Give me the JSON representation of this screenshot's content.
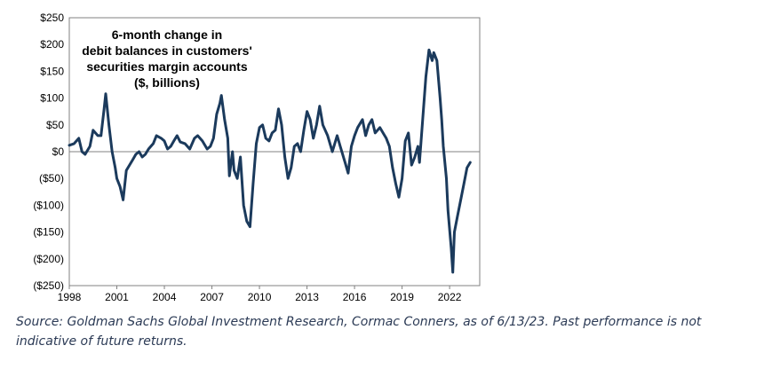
{
  "chart_data": {
    "type": "line",
    "title_lines": [
      "6-month change in",
      "debit balances in customers'",
      "securities margin accounts",
      "($, billions)"
    ],
    "xlabel": "",
    "ylabel": "",
    "xlim": [
      1998,
      2023.9
    ],
    "ylim": [
      -250,
      250
    ],
    "x_ticks": [
      1998,
      2001,
      2004,
      2007,
      2010,
      2013,
      2016,
      2019,
      2022
    ],
    "y_ticks": [
      {
        "value": 250,
        "label": "$250"
      },
      {
        "value": 200,
        "label": "$200"
      },
      {
        "value": 150,
        "label": "$150"
      },
      {
        "value": 100,
        "label": "$100"
      },
      {
        "value": 50,
        "label": "$50"
      },
      {
        "value": 0,
        "label": "$0"
      },
      {
        "value": -50,
        "label": "($50)"
      },
      {
        "value": -100,
        "label": "($100)"
      },
      {
        "value": -150,
        "label": "($150)"
      },
      {
        "value": -200,
        "label": "($200)"
      },
      {
        "value": -250,
        "label": "($250)"
      }
    ],
    "line_color": "#1b3a5c",
    "series": [
      {
        "name": "6-month change in debit balances",
        "points": [
          [
            1998.0,
            12
          ],
          [
            1998.3,
            15
          ],
          [
            1998.6,
            25
          ],
          [
            1998.8,
            0
          ],
          [
            1999.0,
            -5
          ],
          [
            1999.3,
            10
          ],
          [
            1999.5,
            40
          ],
          [
            1999.8,
            30
          ],
          [
            2000.0,
            30
          ],
          [
            2000.2,
            80
          ],
          [
            2000.3,
            108
          ],
          [
            2000.5,
            50
          ],
          [
            2000.7,
            0
          ],
          [
            2000.9,
            -30
          ],
          [
            2001.0,
            -50
          ],
          [
            2001.2,
            -65
          ],
          [
            2001.4,
            -90
          ],
          [
            2001.6,
            -35
          ],
          [
            2001.8,
            -25
          ],
          [
            2002.0,
            -15
          ],
          [
            2002.2,
            -5
          ],
          [
            2002.4,
            0
          ],
          [
            2002.6,
            -10
          ],
          [
            2002.8,
            -5
          ],
          [
            2003.0,
            5
          ],
          [
            2003.3,
            15
          ],
          [
            2003.5,
            30
          ],
          [
            2003.8,
            25
          ],
          [
            2004.0,
            20
          ],
          [
            2004.2,
            5
          ],
          [
            2004.4,
            10
          ],
          [
            2004.6,
            20
          ],
          [
            2004.8,
            30
          ],
          [
            2005.0,
            18
          ],
          [
            2005.3,
            15
          ],
          [
            2005.6,
            5
          ],
          [
            2005.9,
            25
          ],
          [
            2006.1,
            30
          ],
          [
            2006.4,
            20
          ],
          [
            2006.7,
            5
          ],
          [
            2006.9,
            10
          ],
          [
            2007.1,
            25
          ],
          [
            2007.3,
            70
          ],
          [
            2007.5,
            90
          ],
          [
            2007.6,
            105
          ],
          [
            2007.8,
            60
          ],
          [
            2008.0,
            25
          ],
          [
            2008.1,
            -45
          ],
          [
            2008.3,
            0
          ],
          [
            2008.4,
            -35
          ],
          [
            2008.6,
            -50
          ],
          [
            2008.8,
            -10
          ],
          [
            2009.0,
            -100
          ],
          [
            2009.2,
            -130
          ],
          [
            2009.4,
            -140
          ],
          [
            2009.6,
            -60
          ],
          [
            2009.8,
            15
          ],
          [
            2010.0,
            45
          ],
          [
            2010.2,
            50
          ],
          [
            2010.4,
            25
          ],
          [
            2010.6,
            20
          ],
          [
            2010.8,
            35
          ],
          [
            2011.0,
            40
          ],
          [
            2011.2,
            80
          ],
          [
            2011.4,
            50
          ],
          [
            2011.6,
            -10
          ],
          [
            2011.8,
            -50
          ],
          [
            2012.0,
            -30
          ],
          [
            2012.2,
            10
          ],
          [
            2012.4,
            15
          ],
          [
            2012.6,
            0
          ],
          [
            2012.8,
            40
          ],
          [
            2013.0,
            75
          ],
          [
            2013.2,
            60
          ],
          [
            2013.4,
            25
          ],
          [
            2013.6,
            50
          ],
          [
            2013.8,
            85
          ],
          [
            2014.0,
            50
          ],
          [
            2014.3,
            30
          ],
          [
            2014.6,
            0
          ],
          [
            2014.9,
            30
          ],
          [
            2015.1,
            10
          ],
          [
            2015.4,
            -20
          ],
          [
            2015.6,
            -40
          ],
          [
            2015.8,
            10
          ],
          [
            2016.0,
            30
          ],
          [
            2016.2,
            45
          ],
          [
            2016.5,
            60
          ],
          [
            2016.7,
            30
          ],
          [
            2016.9,
            50
          ],
          [
            2017.1,
            60
          ],
          [
            2017.3,
            35
          ],
          [
            2017.6,
            45
          ],
          [
            2017.8,
            35
          ],
          [
            2018.0,
            25
          ],
          [
            2018.2,
            10
          ],
          [
            2018.4,
            -30
          ],
          [
            2018.6,
            -60
          ],
          [
            2018.8,
            -85
          ],
          [
            2019.0,
            -50
          ],
          [
            2019.2,
            20
          ],
          [
            2019.4,
            35
          ],
          [
            2019.6,
            -25
          ],
          [
            2019.8,
            -10
          ],
          [
            2020.0,
            10
          ],
          [
            2020.1,
            -20
          ],
          [
            2020.3,
            60
          ],
          [
            2020.5,
            140
          ],
          [
            2020.7,
            190
          ],
          [
            2020.9,
            170
          ],
          [
            2021.0,
            185
          ],
          [
            2021.2,
            170
          ],
          [
            2021.4,
            100
          ],
          [
            2021.5,
            60
          ],
          [
            2021.6,
            10
          ],
          [
            2021.8,
            -50
          ],
          [
            2021.9,
            -110
          ],
          [
            2022.1,
            -180
          ],
          [
            2022.2,
            -225
          ],
          [
            2022.3,
            -150
          ],
          [
            2022.5,
            -120
          ],
          [
            2022.7,
            -90
          ],
          [
            2022.9,
            -60
          ],
          [
            2023.1,
            -30
          ],
          [
            2023.3,
            -20
          ]
        ]
      }
    ]
  },
  "footnote": {
    "line1": "Source: Goldman Sachs Global Investment Research, Cormac Conners, as of 6/13/23. Past performance is not",
    "line2": "indicative of future returns."
  }
}
